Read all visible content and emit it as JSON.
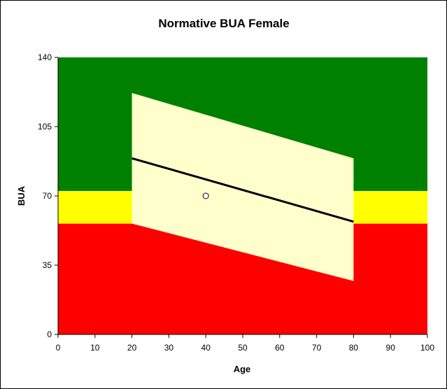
{
  "chart_data": {
    "type": "area",
    "title": "Normative BUA Female",
    "xlabel": "Age",
    "ylabel": "BUA",
    "xlim": [
      0,
      100
    ],
    "ylim": [
      0,
      140
    ],
    "x_ticks": [
      0,
      10,
      20,
      30,
      40,
      50,
      60,
      70,
      80,
      90,
      100
    ],
    "y_ticks": [
      0,
      35,
      70,
      105,
      140
    ],
    "grid": false,
    "legend": "none",
    "background_zones": [
      {
        "color": "#FF0000",
        "y_from": 0,
        "y_to": 56
      },
      {
        "color": "#FFFF00",
        "y_from": 56,
        "y_to": 72.5
      },
      {
        "color": "#008000",
        "y_from": 72.5,
        "y_to": 140
      }
    ],
    "normal_band": {
      "color": "#FFFFCC",
      "x": [
        20,
        80
      ],
      "upper": [
        122,
        89
      ],
      "lower": [
        56,
        27
      ]
    },
    "series": [
      {
        "type": "line",
        "color": "#000000",
        "x": [
          20,
          80
        ],
        "y": [
          89,
          57
        ]
      },
      {
        "type": "scatter",
        "color": "#000000",
        "marker": "open-circle",
        "x": [
          40
        ],
        "y": [
          70
        ]
      }
    ]
  }
}
